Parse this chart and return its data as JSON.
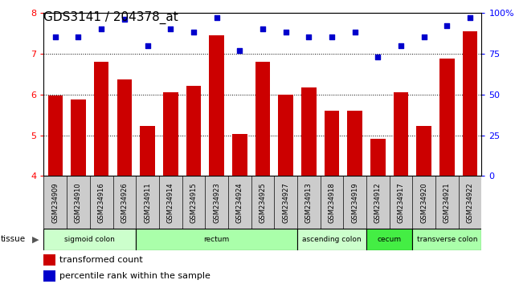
{
  "title": "GDS3141 / 204378_at",
  "samples": [
    "GSM234909",
    "GSM234910",
    "GSM234916",
    "GSM234926",
    "GSM234911",
    "GSM234914",
    "GSM234915",
    "GSM234923",
    "GSM234924",
    "GSM234925",
    "GSM234927",
    "GSM234913",
    "GSM234918",
    "GSM234919",
    "GSM234912",
    "GSM234917",
    "GSM234920",
    "GSM234921",
    "GSM234922"
  ],
  "bar_values": [
    5.97,
    5.87,
    6.8,
    6.37,
    5.22,
    6.06,
    6.22,
    7.44,
    5.04,
    6.8,
    5.99,
    6.18,
    5.6,
    5.6,
    4.91,
    6.06,
    5.23,
    6.87,
    7.54
  ],
  "percentile_values": [
    85,
    85,
    90,
    96,
    80,
    90,
    88,
    97,
    77,
    90,
    88,
    85,
    85,
    88,
    73,
    80,
    85,
    92,
    97
  ],
  "ylim_left": [
    4,
    8
  ],
  "ylim_right": [
    0,
    100
  ],
  "yticks_left": [
    4,
    5,
    6,
    7,
    8
  ],
  "yticks_right": [
    0,
    25,
    50,
    75,
    100
  ],
  "ytick_labels_right": [
    "0",
    "25",
    "50",
    "75",
    "100%"
  ],
  "bar_color": "#cc0000",
  "dot_color": "#0000cc",
  "tissue_groups": [
    {
      "label": "sigmoid colon",
      "start": 0,
      "end": 4,
      "color": "#ccffcc"
    },
    {
      "label": "rectum",
      "start": 4,
      "end": 11,
      "color": "#aaffaa"
    },
    {
      "label": "ascending colon",
      "start": 11,
      "end": 14,
      "color": "#ccffcc"
    },
    {
      "label": "cecum",
      "start": 14,
      "end": 16,
      "color": "#44ee44"
    },
    {
      "label": "transverse colon",
      "start": 16,
      "end": 19,
      "color": "#aaffaa"
    }
  ],
  "tissue_label": "tissue",
  "legend_bar_label": "transformed count",
  "legend_dot_label": "percentile rank within the sample",
  "title_fontsize": 11,
  "tick_fontsize": 8,
  "sample_fontsize": 6
}
